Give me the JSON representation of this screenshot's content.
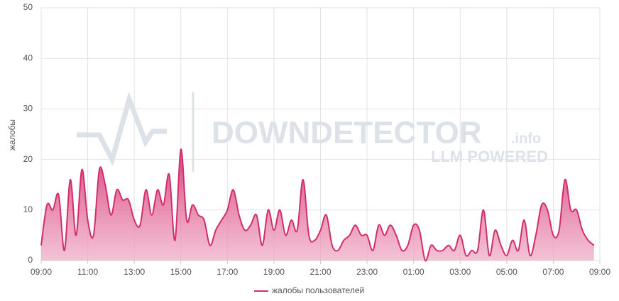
{
  "chart_data": {
    "type": "area",
    "y_label": "жалобы",
    "watermark": {
      "brand": "DOWNDETECTOR",
      "suffix": ".info",
      "tagline": "LLM POWERED"
    },
    "x": [
      0,
      0.25,
      0.5,
      0.75,
      1,
      1.25,
      1.5,
      1.75,
      2,
      2.25,
      2.5,
      2.75,
      3,
      3.25,
      3.5,
      3.75,
      4,
      4.25,
      4.5,
      4.75,
      5,
      5.25,
      5.5,
      5.75,
      6,
      6.25,
      6.5,
      6.75,
      7,
      7.25,
      7.5,
      7.75,
      8,
      8.25,
      8.5,
      8.75,
      9,
      9.25,
      9.5,
      9.75,
      10,
      10.25,
      10.5,
      10.75,
      11,
      11.25,
      11.5,
      11.75,
      12,
      12.25,
      12.5,
      12.75,
      13,
      13.25,
      13.5,
      13.75,
      14,
      14.25,
      14.5,
      14.75,
      15,
      15.25,
      15.5,
      15.75,
      16,
      16.25,
      16.5,
      16.75,
      17,
      17.25,
      17.5,
      17.75,
      18,
      18.25,
      18.5,
      18.75,
      19,
      19.25,
      19.5,
      19.75,
      20,
      20.25,
      20.5,
      20.75,
      21,
      21.25,
      21.5,
      21.75,
      22,
      22.25,
      22.5,
      22.75,
      23,
      23.25,
      23.5,
      23.75
    ],
    "series": [
      {
        "name": "жалобы пользователей",
        "color": "#d12e6c",
        "values": [
          3,
          11,
          10,
          13,
          2,
          16,
          5,
          18,
          8,
          5,
          18,
          15,
          9,
          14,
          12,
          12,
          8,
          7,
          14,
          9,
          14,
          11,
          17,
          4,
          22,
          8,
          11,
          9,
          8,
          3,
          6,
          8,
          10,
          14,
          9,
          6,
          7,
          9,
          3,
          10,
          6,
          10,
          5,
          8,
          6,
          16,
          5,
          4,
          6,
          9,
          3,
          2,
          4,
          5,
          7,
          5,
          5,
          2,
          7,
          5,
          7,
          5,
          2,
          3,
          7,
          6,
          0,
          3,
          2,
          2,
          3,
          2,
          5,
          1,
          2,
          2,
          10,
          1,
          6,
          3,
          1,
          4,
          2,
          8,
          1,
          5,
          11,
          10,
          5,
          6,
          16,
          10,
          10,
          6,
          4,
          3
        ]
      }
    ],
    "xlim": [
      0,
      24
    ],
    "xticks": [
      {
        "value": 0,
        "label": "09:00"
      },
      {
        "value": 2,
        "label": "11:00"
      },
      {
        "value": 4,
        "label": "13:00"
      },
      {
        "value": 6,
        "label": "15:00"
      },
      {
        "value": 8,
        "label": "17:00"
      },
      {
        "value": 10,
        "label": "19:00"
      },
      {
        "value": 12,
        "label": "21:00"
      },
      {
        "value": 14,
        "label": "23:00"
      },
      {
        "value": 16,
        "label": "01:00"
      },
      {
        "value": 18,
        "label": "03:00"
      },
      {
        "value": 20,
        "label": "05:00"
      },
      {
        "value": 22,
        "label": "07:00"
      },
      {
        "value": 24,
        "label": "09:00"
      }
    ],
    "ylim": [
      0,
      50
    ],
    "yticks": [
      0,
      10,
      20,
      30,
      40,
      50
    ],
    "grid": true
  }
}
